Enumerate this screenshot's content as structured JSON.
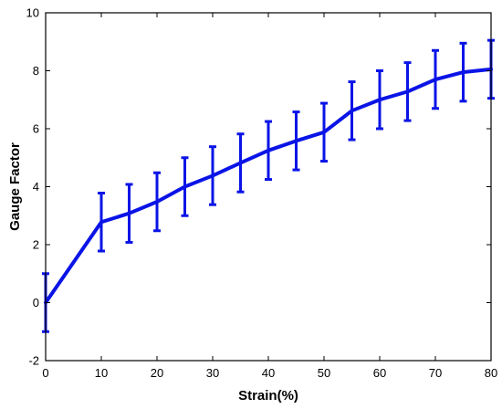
{
  "chart_data": {
    "type": "line",
    "title": "",
    "xlabel": "Strain(%)",
    "ylabel": "Gauge Factor",
    "xlim": [
      0,
      80
    ],
    "ylim": [
      -2,
      10
    ],
    "x_ticks": [
      0,
      10,
      20,
      30,
      40,
      50,
      60,
      70,
      80
    ],
    "y_ticks": [
      -2,
      0,
      2,
      4,
      6,
      8,
      10
    ],
    "x_tick_labels": [
      "0",
      "10",
      "20",
      "30",
      "40",
      "50",
      "60",
      "70",
      "80"
    ],
    "y_tick_labels": [
      "-2",
      "0",
      "2",
      "4",
      "6",
      "8",
      "10"
    ],
    "grid": false,
    "legend": false,
    "series": [
      {
        "color": "#0a14e6",
        "x": [
          0,
          10,
          15,
          20,
          25,
          30,
          35,
          40,
          45,
          50,
          55,
          60,
          65,
          70,
          75,
          80
        ],
        "y": [
          0,
          2.78,
          3.08,
          3.48,
          4.0,
          4.38,
          4.82,
          5.25,
          5.58,
          5.88,
          6.62,
          7.0,
          7.28,
          7.7,
          7.95,
          8.05
        ],
        "error": [
          1.0,
          1.0,
          1.0,
          1.0,
          1.0,
          1.0,
          1.0,
          1.0,
          1.0,
          1.0,
          1.0,
          1.0,
          1.0,
          1.0,
          1.0,
          1.0
        ]
      }
    ]
  }
}
